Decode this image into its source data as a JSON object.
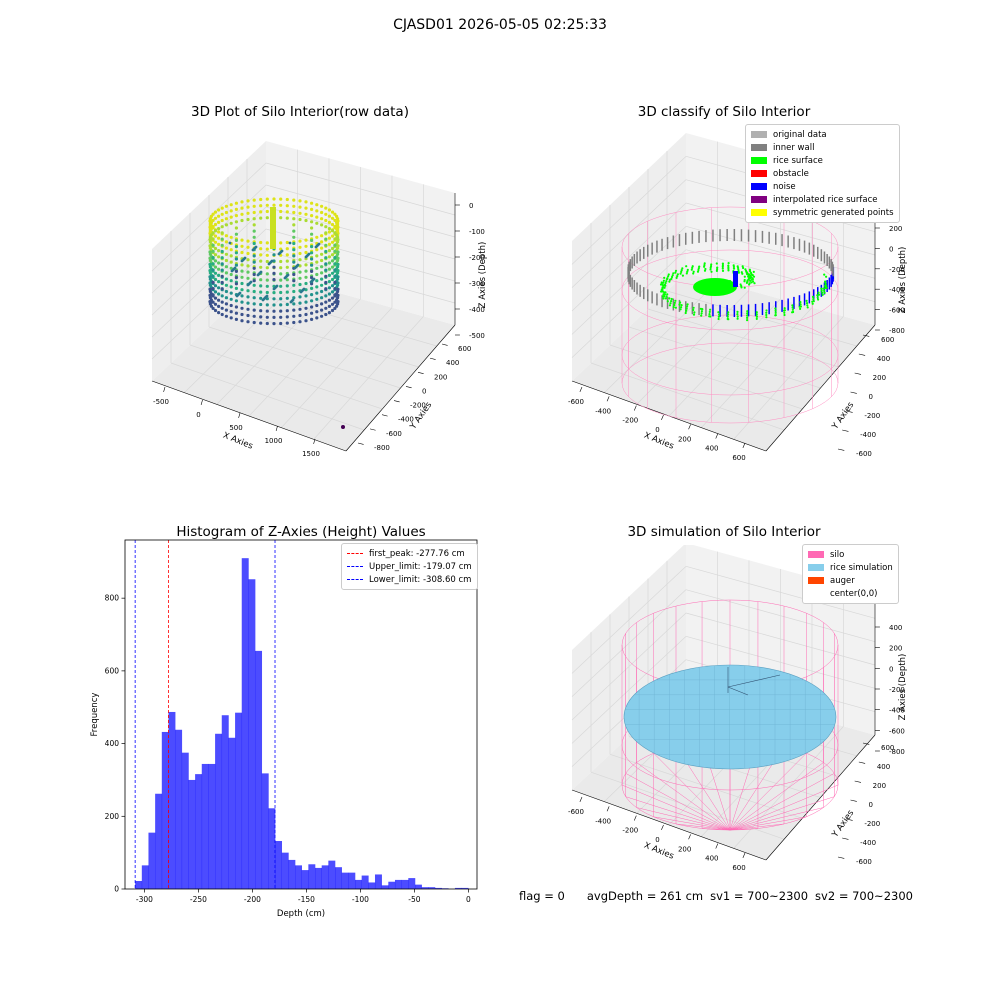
{
  "suptitle": "CJASD01 2026-05-05 02:25:33",
  "panels": {
    "raw": {
      "title": "3D Plot of Silo Interior(row data)",
      "xlabel": "X Axies",
      "ylabel": "Y Axies",
      "zlabel": "Z Axies (Depth)",
      "xticks": [
        "-500",
        "0",
        "500",
        "1000",
        "1500"
      ],
      "yticks": [
        "-800",
        "-600",
        "-400",
        "-200",
        "0",
        "200",
        "400",
        "600"
      ],
      "zticks": [
        "0",
        "-100",
        "-200",
        "-300",
        "-400",
        "-500"
      ]
    },
    "classify": {
      "title": "3D classify of Silo Interior",
      "xlabel": "X Axies",
      "ylabel": "Y Axies",
      "zlabel": "Z Axies (Depth)",
      "xticks": [
        "-600",
        "-400",
        "-200",
        "0",
        "200",
        "400",
        "600"
      ],
      "yticks": [
        "-600",
        "-400",
        "-200",
        "0",
        "200",
        "400",
        "600"
      ],
      "zticks": [
        "200",
        "0",
        "-200",
        "-400",
        "-600",
        "-800"
      ],
      "legend": [
        {
          "label": "original data",
          "color": "#b0b0b0"
        },
        {
          "label": "inner wall",
          "color": "#808080"
        },
        {
          "label": "rice surface",
          "color": "#00ff00"
        },
        {
          "label": "obstacle",
          "color": "#ff0000"
        },
        {
          "label": "noise",
          "color": "#0000ff"
        },
        {
          "label": "interpolated rice surface",
          "color": "#800080"
        },
        {
          "label": "symmetric generated points",
          "color": "#ffff00"
        }
      ],
      "legend_overflow_tick": "00"
    },
    "simulation": {
      "title": "3D simulation of Silo Interior",
      "xlabel": "X Axies",
      "ylabel": "Y Axies",
      "zlabel": "Z Axies (Depth)",
      "xticks": [
        "-600",
        "-400",
        "-200",
        "0",
        "200",
        "400",
        "600"
      ],
      "yticks": [
        "-600",
        "-400",
        "-200",
        "0",
        "200",
        "400",
        "600"
      ],
      "zticks": [
        "400",
        "200",
        "0",
        "-200",
        "-400",
        "-600",
        "-800"
      ],
      "legend": [
        {
          "label": "silo",
          "color": "#ff69b4"
        },
        {
          "label": "rice simulation",
          "color": "#87ceeb"
        },
        {
          "label": "auger",
          "color": "#ff4500"
        },
        {
          "label": "center(0,0)",
          "color": "#ffffff"
        }
      ]
    }
  },
  "chart_data": {
    "type": "bar",
    "title": "Histogram of Z-Axies (Height) Values",
    "xlabel": "Depth (cm)",
    "ylabel": "Frequency",
    "xlim": [
      -318,
      8
    ],
    "ylim": [
      0,
      960
    ],
    "xticks": [
      -300,
      -250,
      -200,
      -150,
      -100,
      -50,
      0
    ],
    "yticks": [
      0,
      200,
      400,
      600,
      800
    ],
    "bin_width": 6.17,
    "bin_start": -308.6,
    "values": [
      22,
      65,
      155,
      262,
      432,
      487,
      438,
      375,
      300,
      316,
      344,
      344,
      427,
      478,
      416,
      485,
      910,
      852,
      655,
      318,
      222,
      132,
      100,
      80,
      65,
      52,
      68,
      58,
      65,
      78,
      60,
      45,
      45,
      25,
      37,
      18,
      40,
      10,
      20,
      25,
      25,
      30,
      12,
      5,
      5,
      3,
      2,
      0,
      3,
      3
    ],
    "color": "#0000ff",
    "lines": [
      {
        "label": "first_peak: -277.76 cm",
        "x": -277.76,
        "color": "#ff0000"
      },
      {
        "label": "Upper_limit: -179.07 cm",
        "x": -179.07,
        "color": "#0000ff"
      },
      {
        "label": "Lower_limit: -308.60 cm",
        "x": -308.6,
        "color": "#0000ff"
      }
    ],
    "legend_position": "upper right"
  },
  "status": {
    "flag": "flag = 0",
    "avg": "avgDepth = 261 cm",
    "sv1": "sv1 = 700~2300",
    "sv2": "sv2 = 700~2300"
  }
}
